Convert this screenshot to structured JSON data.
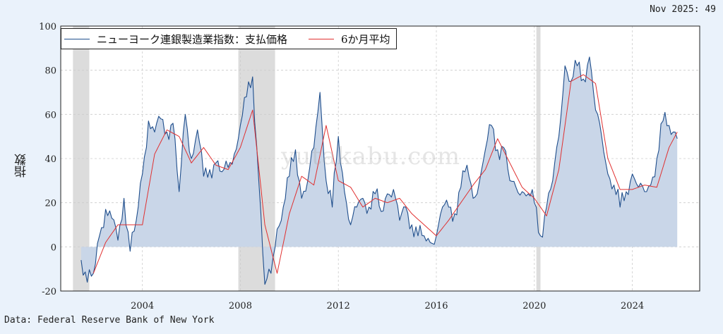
{
  "latest_label": "Nov 2025: 49",
  "source": "Data: Federal Reserve Bank of New York",
  "watermark": "yutakabu.com",
  "chart_data": {
    "type": "area",
    "title": "",
    "xlabel": "",
    "ylabel": "指数",
    "ylim": [
      -20,
      100
    ],
    "yticks": [
      -20,
      0,
      20,
      40,
      60,
      80,
      100
    ],
    "xticks": [
      "2004",
      "2008",
      "2012",
      "2016",
      "2020",
      "2024"
    ],
    "xlim": [
      "2000-09",
      "2026-10"
    ],
    "grid": true,
    "legend_position": "top-left",
    "colors": {
      "index_line": "#1f4e8c",
      "index_fill": "#c9d6e8",
      "ma_line": "#e03030",
      "recession": "#dcdcdc",
      "plot_bg": "#ffffff"
    },
    "recessions": [
      {
        "start": "2001-03",
        "end": "2001-11"
      },
      {
        "start": "2007-12",
        "end": "2009-06"
      },
      {
        "start": "2020-02",
        "end": "2020-04"
      }
    ],
    "series": [
      {
        "name": "ニューヨーク連銀製造業指数：支払価格",
        "points": [
          [
            "2001-07",
            -6
          ],
          [
            "2001-10",
            -16
          ],
          [
            "2002-01",
            -12
          ],
          [
            "2002-04",
            5
          ],
          [
            "2002-07",
            17
          ],
          [
            "2002-10",
            13
          ],
          [
            "2003-01",
            3
          ],
          [
            "2003-04",
            22
          ],
          [
            "2003-07",
            -2
          ],
          [
            "2003-10",
            12
          ],
          [
            "2004-01",
            33
          ],
          [
            "2004-04",
            57
          ],
          [
            "2004-07",
            52
          ],
          [
            "2004-10",
            58
          ],
          [
            "2005-01",
            52
          ],
          [
            "2005-04",
            56
          ],
          [
            "2005-07",
            25
          ],
          [
            "2005-10",
            60
          ],
          [
            "2006-01",
            40
          ],
          [
            "2006-04",
            53
          ],
          [
            "2006-07",
            32
          ],
          [
            "2006-10",
            35
          ],
          [
            "2007-01",
            38
          ],
          [
            "2007-04",
            34
          ],
          [
            "2007-07",
            36
          ],
          [
            "2007-10",
            42
          ],
          [
            "2008-01",
            55
          ],
          [
            "2008-04",
            68
          ],
          [
            "2008-07",
            77
          ],
          [
            "2008-10",
            30
          ],
          [
            "2009-01",
            -17
          ],
          [
            "2009-04",
            -12
          ],
          [
            "2009-07",
            8
          ],
          [
            "2009-10",
            18
          ],
          [
            "2010-01",
            32
          ],
          [
            "2010-04",
            44
          ],
          [
            "2010-07",
            22
          ],
          [
            "2010-10",
            30
          ],
          [
            "2011-01",
            45
          ],
          [
            "2011-04",
            70
          ],
          [
            "2011-07",
            30
          ],
          [
            "2011-10",
            18
          ],
          [
            "2012-01",
            50
          ],
          [
            "2012-04",
            25
          ],
          [
            "2012-07",
            10
          ],
          [
            "2012-10",
            18
          ],
          [
            "2013-01",
            22
          ],
          [
            "2013-04",
            18
          ],
          [
            "2013-07",
            24
          ],
          [
            "2013-10",
            16
          ],
          [
            "2014-01",
            24
          ],
          [
            "2014-04",
            26
          ],
          [
            "2014-07",
            12
          ],
          [
            "2014-10",
            18
          ],
          [
            "2015-01",
            10
          ],
          [
            "2015-04",
            5
          ],
          [
            "2015-07",
            5
          ],
          [
            "2015-10",
            2
          ],
          [
            "2016-01",
            5
          ],
          [
            "2016-04",
            18
          ],
          [
            "2016-07",
            18
          ],
          [
            "2016-10",
            15
          ],
          [
            "2017-01",
            27
          ],
          [
            "2017-04",
            37
          ],
          [
            "2017-07",
            22
          ],
          [
            "2017-10",
            29
          ],
          [
            "2018-01",
            44
          ],
          [
            "2018-04",
            55
          ],
          [
            "2018-07",
            44
          ],
          [
            "2018-10",
            45
          ],
          [
            "2019-01",
            30
          ],
          [
            "2019-04",
            27
          ],
          [
            "2019-07",
            25
          ],
          [
            "2019-10",
            24
          ],
          [
            "2020-01",
            20
          ],
          [
            "2020-04",
            5
          ],
          [
            "2020-07",
            18
          ],
          [
            "2020-10",
            30
          ],
          [
            "2021-01",
            50
          ],
          [
            "2021-04",
            82
          ],
          [
            "2021-07",
            75
          ],
          [
            "2021-10",
            82
          ],
          [
            "2022-01",
            76
          ],
          [
            "2022-04",
            86
          ],
          [
            "2022-07",
            62
          ],
          [
            "2022-10",
            50
          ],
          [
            "2023-01",
            33
          ],
          [
            "2023-04",
            28
          ],
          [
            "2023-07",
            18
          ],
          [
            "2023-10",
            25
          ],
          [
            "2024-01",
            33
          ],
          [
            "2024-04",
            27
          ],
          [
            "2024-07",
            25
          ],
          [
            "2024-10",
            28
          ],
          [
            "2025-01",
            40
          ],
          [
            "2025-04",
            57
          ],
          [
            "2025-07",
            55
          ],
          [
            "2025-10",
            52
          ],
          [
            "2025-11",
            49
          ]
        ]
      },
      {
        "name": "6か月平均",
        "points": [
          [
            "2002-01",
            -12
          ],
          [
            "2002-07",
            2
          ],
          [
            "2003-01",
            10
          ],
          [
            "2003-07",
            10
          ],
          [
            "2004-01",
            10
          ],
          [
            "2004-07",
            42
          ],
          [
            "2005-01",
            53
          ],
          [
            "2005-07",
            50
          ],
          [
            "2006-01",
            38
          ],
          [
            "2006-07",
            45
          ],
          [
            "2007-01",
            37
          ],
          [
            "2007-07",
            35
          ],
          [
            "2008-01",
            45
          ],
          [
            "2008-07",
            62
          ],
          [
            "2009-01",
            10
          ],
          [
            "2009-07",
            -12
          ],
          [
            "2010-01",
            15
          ],
          [
            "2010-07",
            32
          ],
          [
            "2011-01",
            28
          ],
          [
            "2011-07",
            55
          ],
          [
            "2012-01",
            30
          ],
          [
            "2012-07",
            27
          ],
          [
            "2013-01",
            18
          ],
          [
            "2013-07",
            22
          ],
          [
            "2014-01",
            20
          ],
          [
            "2014-07",
            22
          ],
          [
            "2015-01",
            15
          ],
          [
            "2015-07",
            10
          ],
          [
            "2016-01",
            5
          ],
          [
            "2016-07",
            12
          ],
          [
            "2017-01",
            20
          ],
          [
            "2017-07",
            28
          ],
          [
            "2018-01",
            35
          ],
          [
            "2018-07",
            49
          ],
          [
            "2019-01",
            38
          ],
          [
            "2019-07",
            27
          ],
          [
            "2020-01",
            22
          ],
          [
            "2020-07",
            14
          ],
          [
            "2021-01",
            35
          ],
          [
            "2021-07",
            75
          ],
          [
            "2022-01",
            78
          ],
          [
            "2022-07",
            74
          ],
          [
            "2023-01",
            40
          ],
          [
            "2023-07",
            26
          ],
          [
            "2024-01",
            26
          ],
          [
            "2024-07",
            28
          ],
          [
            "2025-01",
            27
          ],
          [
            "2025-07",
            45
          ],
          [
            "2025-11",
            52
          ]
        ]
      }
    ]
  }
}
